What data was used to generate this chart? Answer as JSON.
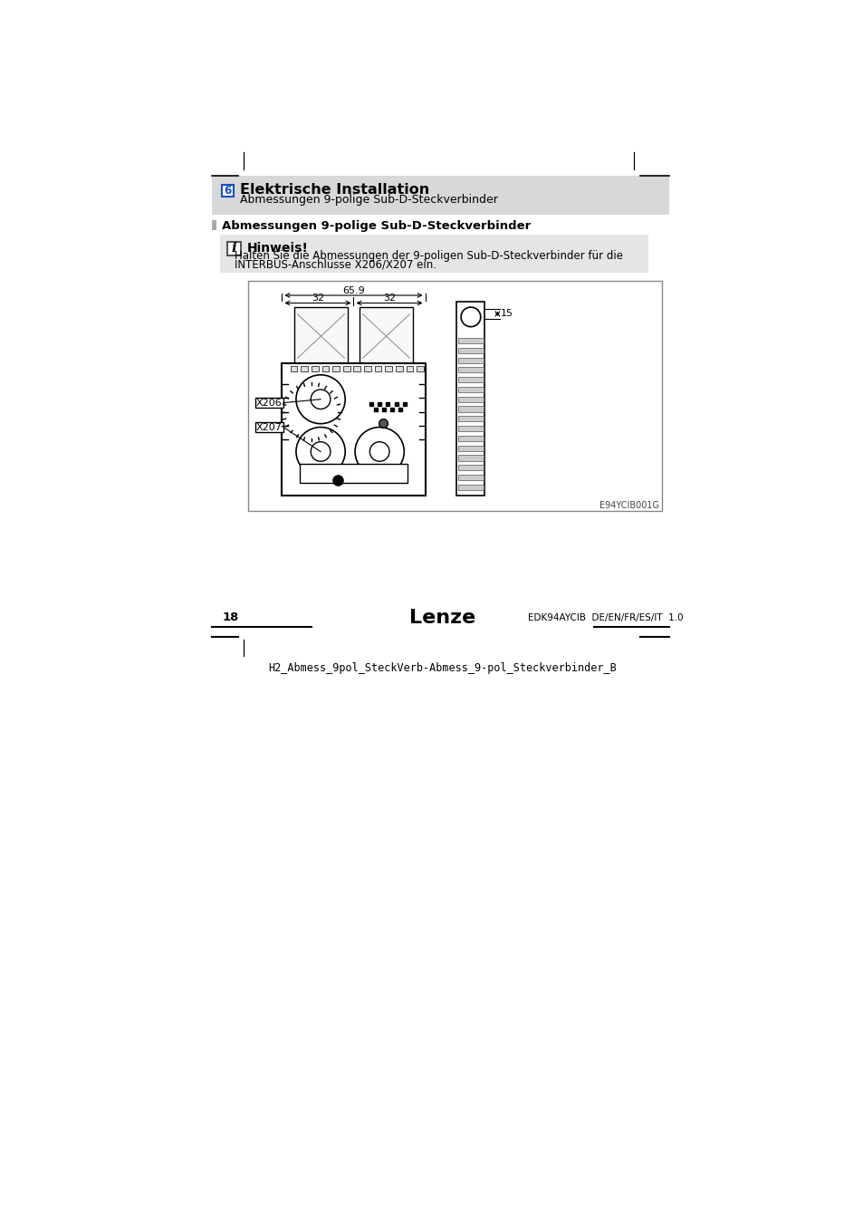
{
  "bg_color": "#ffffff",
  "header_bg": "#d8d8d8",
  "header_section_num": "6",
  "header_section_num_color": "#1a4fc4",
  "header_title": "Elektrische Installation",
  "header_subtitle": "Abmessungen 9-polige Sub-D-Steckverbinder",
  "section_title": "Abmessungen 9-polige Sub-D-Steckverbinder",
  "section_bar_color": "#aaaaaa",
  "note_bg": "#e5e5e5",
  "note_title": "Hinweis!",
  "note_text_line1": "Halten Sie die Abmessungen der 9-poligen Sub-D-Steckverbinder für die",
  "note_text_line2": "INTERBUS-Anschlüsse X206/X207 ein.",
  "dim_659": "65.9",
  "dim_32_left": "32",
  "dim_32_right": "32",
  "dim_15": "15",
  "label_x206": "X206",
  "label_x207": "X207",
  "caption": "E94YCIB001G",
  "page_number": "18",
  "lenze_text": "Lenze",
  "footer_text": "EDK94AYCIB  DE/EN/FR/ES/IT  1.0",
  "bottom_ref": "H2_Abmess_9pol_SteckVerb-Abmess_9-pol_Steckverbinder_B"
}
